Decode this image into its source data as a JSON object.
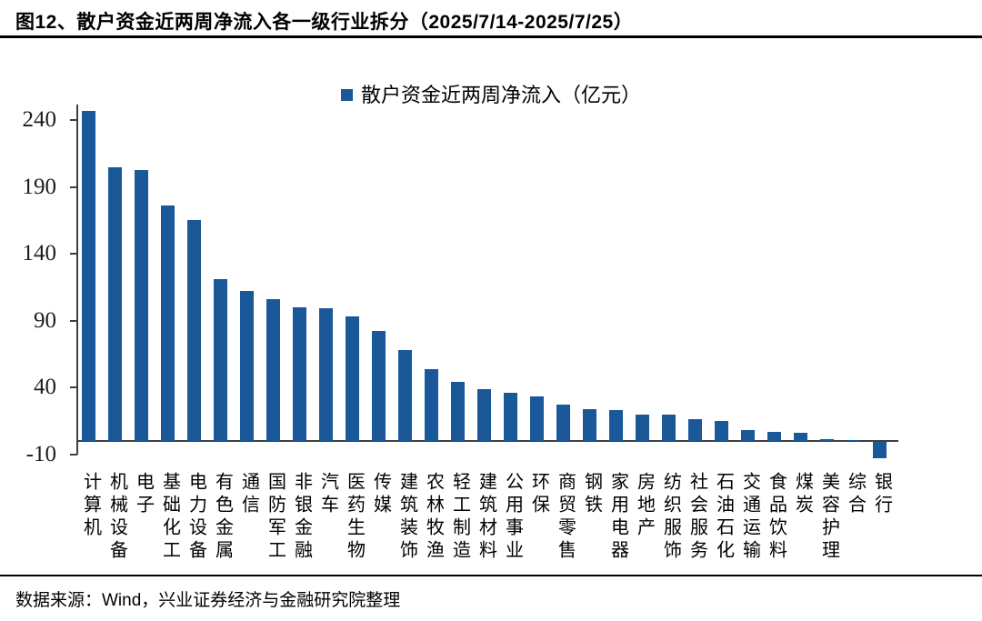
{
  "header": {
    "title": "图12、散户资金近两周净流入各一级行业拆分（2025/7/14-2025/7/25）"
  },
  "legend": {
    "label": "散户资金近两周净流入（亿元）",
    "marker_color": "#1a5899",
    "marker_icon": "square-icon"
  },
  "chart_data": {
    "type": "bar",
    "title": "散户资金近两周净流入（亿元）",
    "ylabel": "",
    "xlabel": "",
    "ylim": [
      -10,
      240
    ],
    "yticks": [
      240,
      190,
      140,
      90,
      40,
      -10
    ],
    "grid": false,
    "legend_position": "top-center",
    "bar_color": "#1a5899",
    "categories": [
      "计算机",
      "机械设备",
      "电子",
      "基础化工",
      "电力设备",
      "有色金属",
      "通信",
      "国防军工",
      "非银金融",
      "汽车",
      "医药生物",
      "传媒",
      "建筑装饰",
      "农林牧渔",
      "轻工制造",
      "建筑材料",
      "公用事业",
      "环保",
      "商贸零售",
      "钢铁",
      "家用电器",
      "房地产",
      "纺织服饰",
      "社会服务",
      "石油石化",
      "交通运输",
      "食品饮料",
      "煤炭",
      "美容护理",
      "综合",
      "银行"
    ],
    "values": [
      247,
      205,
      203,
      176,
      165,
      121,
      112,
      106,
      100,
      99,
      93,
      82,
      68,
      54,
      44,
      39,
      36,
      33,
      27,
      24,
      23,
      20,
      20,
      16,
      15,
      8,
      7,
      6,
      1.5,
      1,
      -12
    ]
  },
  "footer": {
    "source": "数据来源：Wind，兴业证券经济与金融研究院整理"
  }
}
